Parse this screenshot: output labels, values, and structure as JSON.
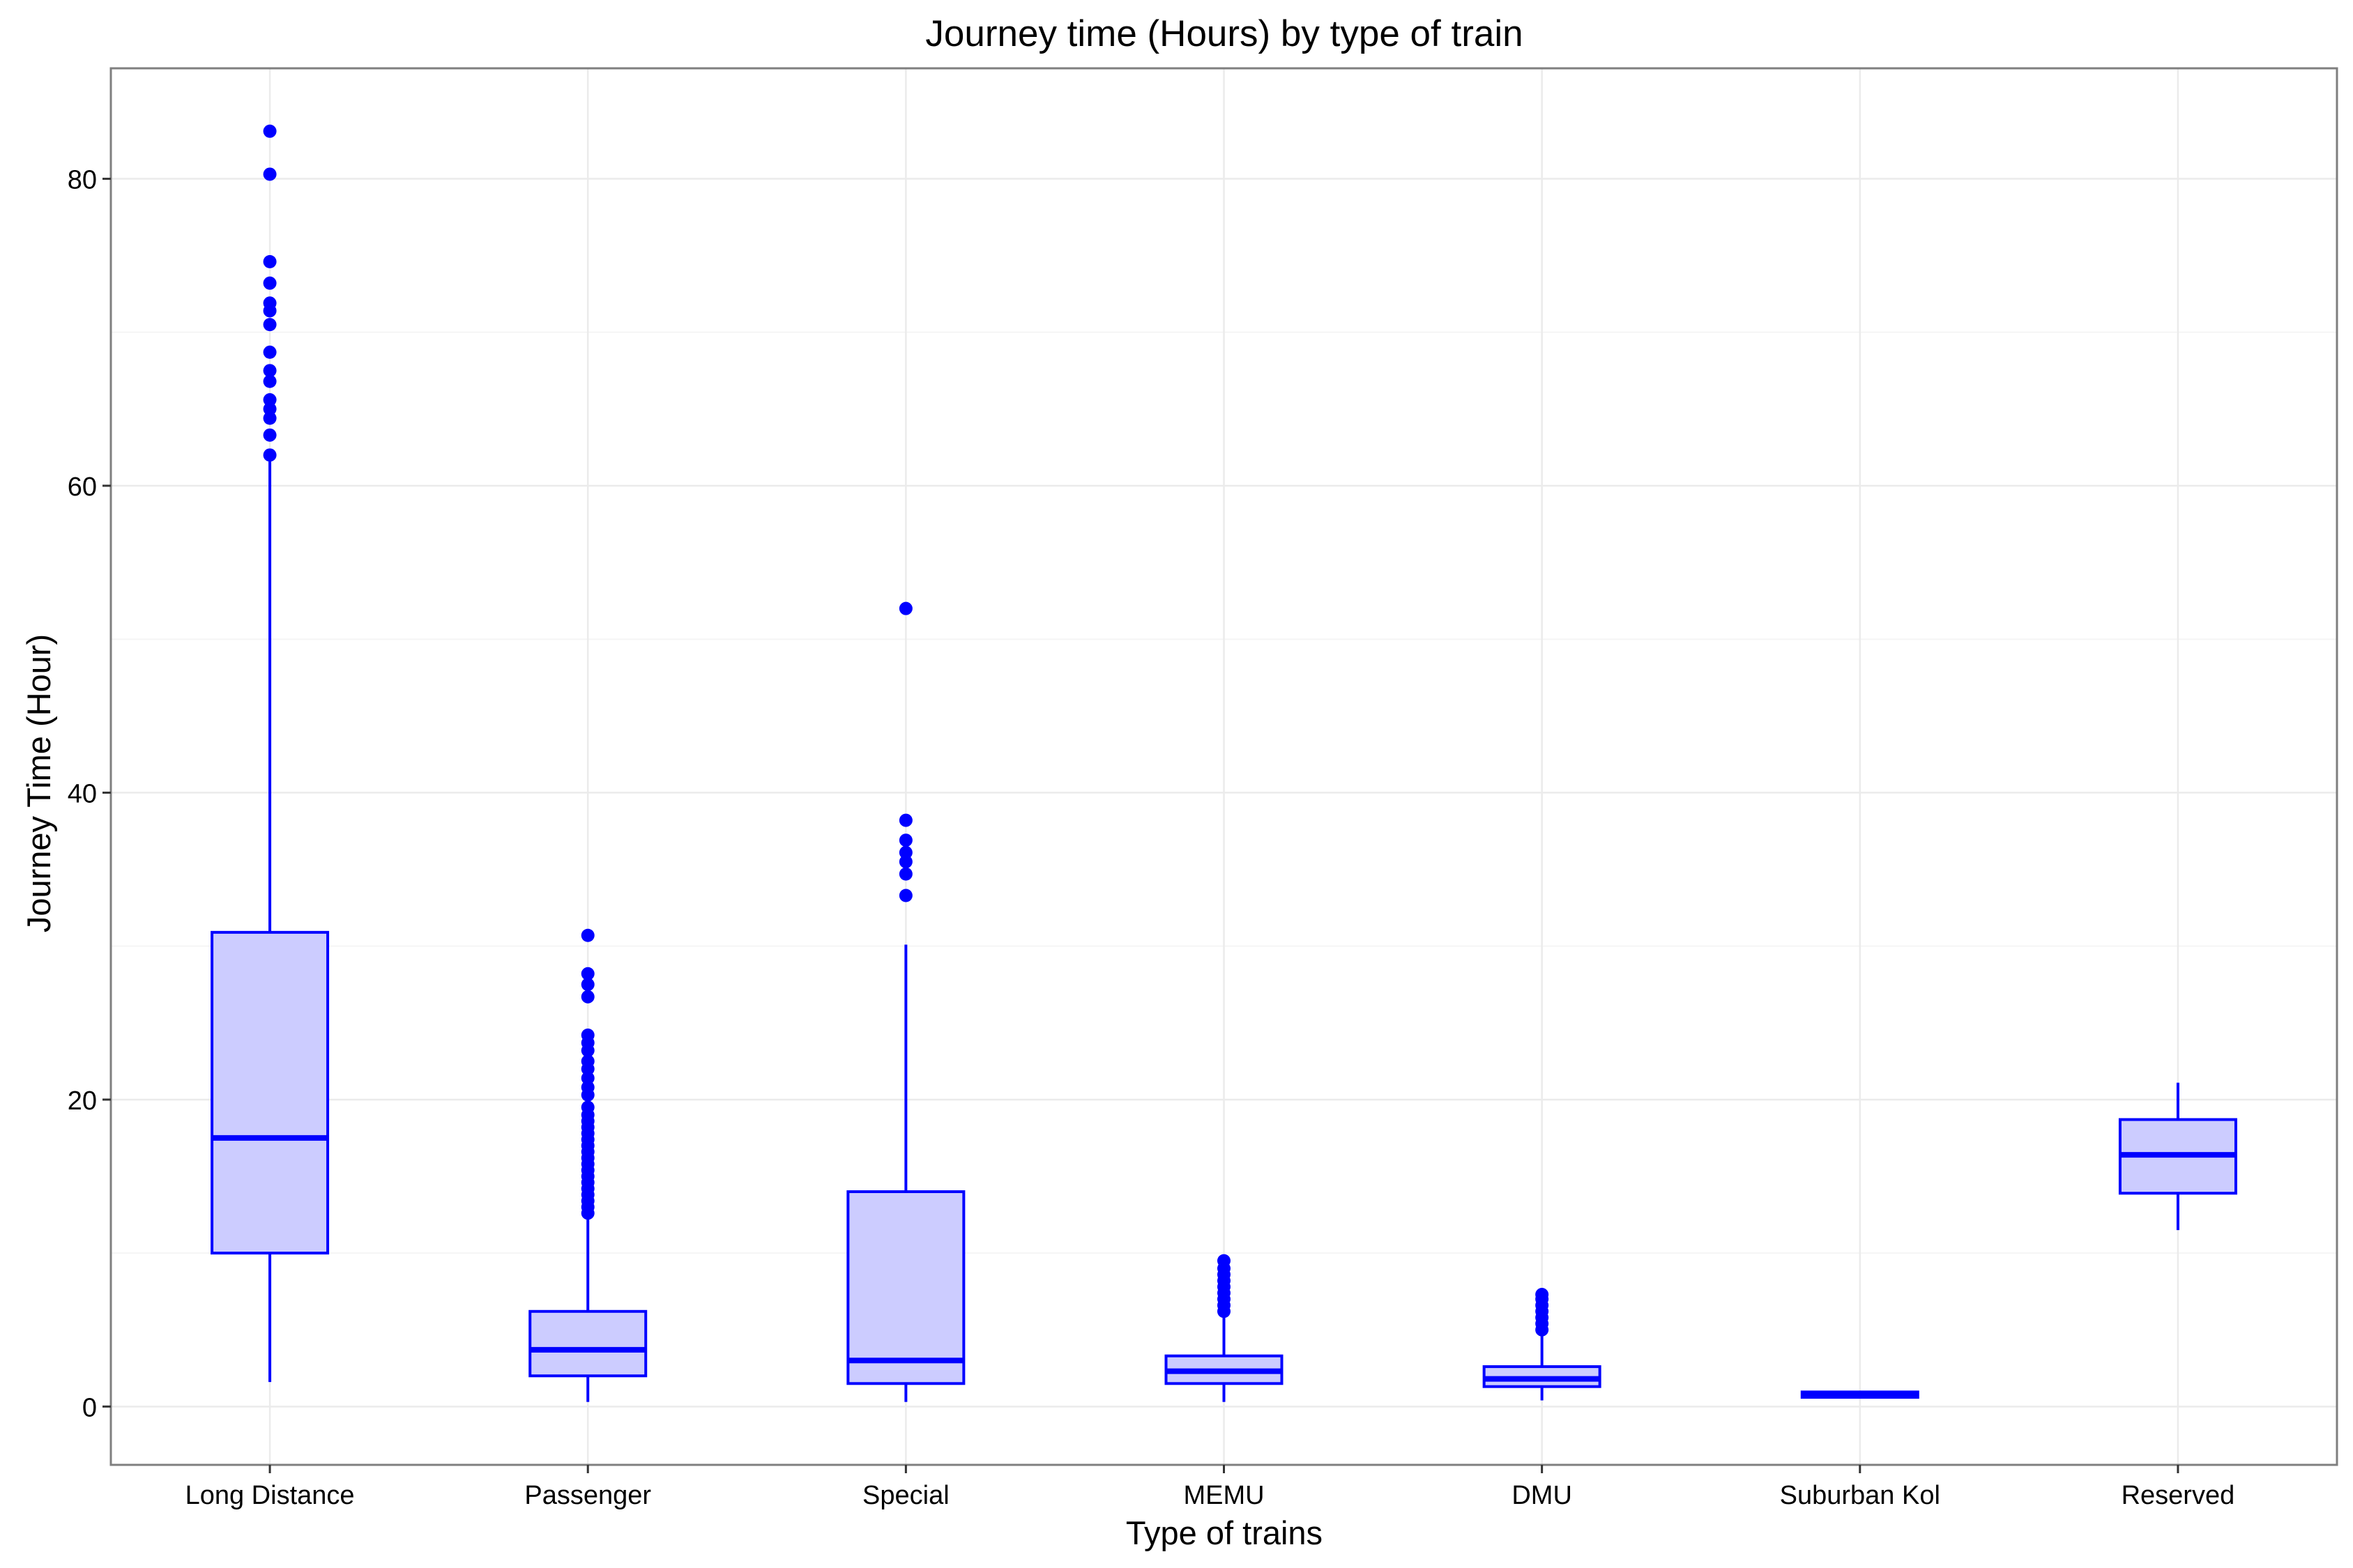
{
  "chart_data": {
    "type": "box",
    "title": "Journey time (Hours) by type of train",
    "xlabel": "Type of trains",
    "ylabel": "Journey Time (Hour)",
    "ylim": [
      -3.8,
      87.2
    ],
    "yticks": [
      0,
      20,
      40,
      60,
      80
    ],
    "grid": true,
    "legend": "none",
    "colors": {
      "box_stroke": "#0000ff",
      "box_fill": "#ccccff",
      "outlier": "#0000ff",
      "grid": "#ebebeb",
      "panel_border": "#7f7f7f",
      "text": "#000000"
    },
    "categories": [
      "Long Distance",
      "Passenger",
      "Special",
      "MEMU",
      "DMU",
      "Suburban Kol",
      "Reserved"
    ],
    "boxes": [
      {
        "name": "Long Distance",
        "min": 1.6,
        "q1": 10.0,
        "median": 17.5,
        "q3": 30.9,
        "max": 62.0,
        "outliers": [
          62.0,
          63.3,
          64.4,
          65.0,
          65.6,
          66.8,
          67.5,
          68.7,
          70.5,
          71.4,
          71.9,
          73.2,
          74.6,
          80.3,
          83.1
        ]
      },
      {
        "name": "Passenger",
        "min": 0.3,
        "q1": 2.0,
        "median": 3.7,
        "q3": 6.2,
        "max": 12.4,
        "outliers": [
          12.6,
          13.0,
          13.4,
          13.8,
          14.2,
          14.6,
          15.0,
          15.4,
          15.8,
          16.2,
          16.6,
          17.0,
          17.4,
          17.8,
          18.2,
          18.6,
          19.0,
          19.5,
          20.3,
          20.8,
          21.4,
          22.0,
          22.5,
          23.2,
          23.7,
          24.2,
          26.7,
          27.5,
          28.2,
          30.7
        ]
      },
      {
        "name": "Special",
        "min": 0.3,
        "q1": 1.5,
        "median": 3.0,
        "q3": 14.0,
        "max": 30.1,
        "outliers": [
          33.3,
          34.7,
          35.5,
          36.1,
          36.9,
          38.2,
          52.0
        ]
      },
      {
        "name": "MEMU",
        "min": 0.3,
        "q1": 1.5,
        "median": 2.3,
        "q3": 3.3,
        "max": 6.0,
        "outliers": [
          6.2,
          6.6,
          7.0,
          7.4,
          7.8,
          8.2,
          8.6,
          9.0,
          9.5
        ]
      },
      {
        "name": "DMU",
        "min": 0.4,
        "q1": 1.3,
        "median": 1.8,
        "q3": 2.6,
        "max": 4.8,
        "outliers": [
          5.0,
          5.4,
          5.8,
          6.2,
          6.6,
          7.0,
          7.3
        ]
      },
      {
        "name": "Suburban Kol",
        "min": 0.6,
        "q1": 0.6,
        "median": 0.75,
        "q3": 0.95,
        "max": 1.0,
        "outliers": []
      },
      {
        "name": "Reserved",
        "min": 11.5,
        "q1": 13.9,
        "median": 16.4,
        "q3": 18.7,
        "max": 21.1,
        "outliers": []
      }
    ]
  }
}
